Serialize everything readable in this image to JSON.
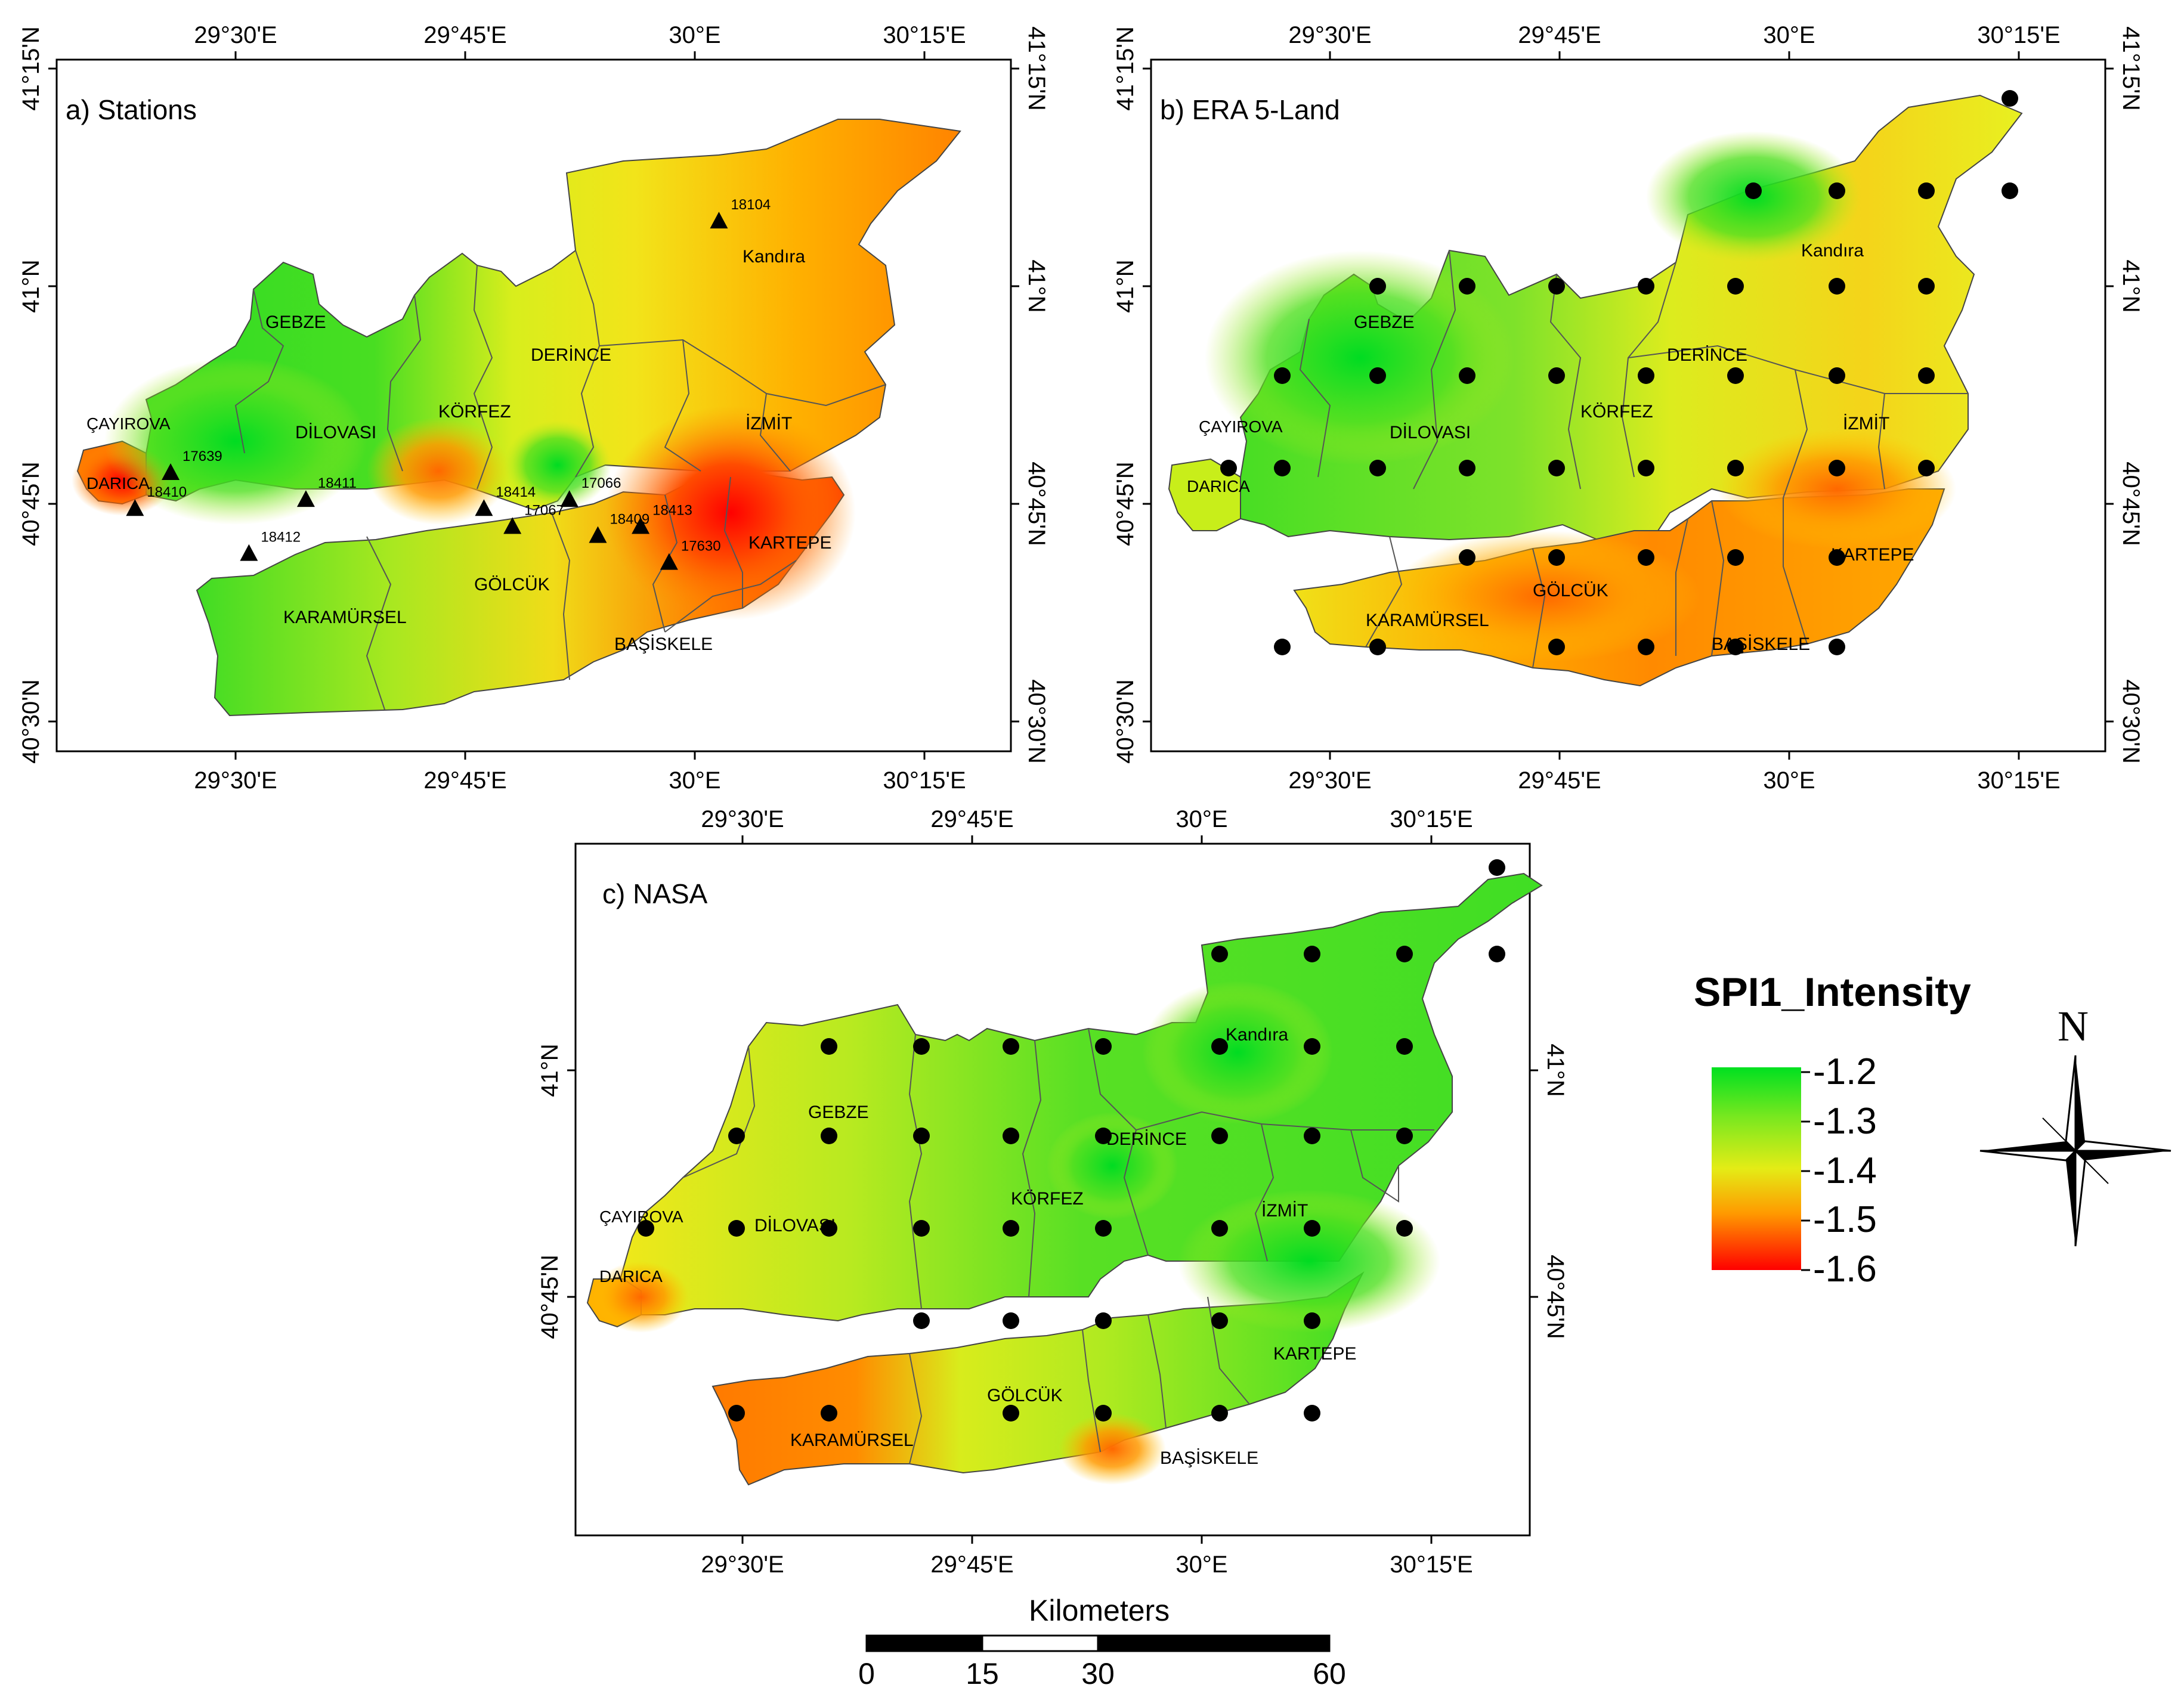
{
  "panels": [
    {
      "id": "a",
      "title": "a) Stations",
      "top_axis_ticks": [
        "29°30'E",
        "29°45'E",
        "30°E",
        "30°15'E"
      ],
      "bottom_axis_ticks": [
        "29°30'E",
        "29°45'E",
        "30°E",
        "30°15'E"
      ],
      "left_axis_ticks": [
        "41°15'N",
        "41°N",
        "40°45'N",
        "40°30'N"
      ],
      "right_axis_ticks": [
        "41°15'N",
        "41°N",
        "40°45'N",
        "40°30'N"
      ],
      "districts": [
        "Kandıra",
        "GEBZE",
        "DERİNCE",
        "ÇAYIROVA",
        "DİLOVASI",
        "KÖRFEZ",
        "İZMİT",
        "DARICA",
        "KARTEPE",
        "GÖLCÜK",
        "KARAMÜRSEL",
        "BAŞİSKELE"
      ],
      "station_marker": "triangle",
      "stations": [
        {
          "id": "18104",
          "lon": 30.14,
          "lat": 41.08
        },
        {
          "id": "17639",
          "lon": 29.37,
          "lat": 40.8
        },
        {
          "id": "18411",
          "lon": 29.56,
          "lat": 40.77
        },
        {
          "id": "18414",
          "lon": 29.81,
          "lat": 40.76
        },
        {
          "id": "17066",
          "lon": 29.93,
          "lat": 40.77
        },
        {
          "id": "17067",
          "lon": 29.85,
          "lat": 40.74
        },
        {
          "id": "18410",
          "lon": 29.32,
          "lat": 40.76
        },
        {
          "id": "18412",
          "lon": 29.48,
          "lat": 40.71
        },
        {
          "id": "18409",
          "lon": 29.97,
          "lat": 40.73
        },
        {
          "id": "18413",
          "lon": 30.03,
          "lat": 40.74
        },
        {
          "id": "17630",
          "lon": 30.07,
          "lat": 40.7
        }
      ]
    },
    {
      "id": "b",
      "title": "b) ERA 5-Land",
      "top_axis_ticks": [
        "29°30'E",
        "29°45'E",
        "30°E",
        "30°15'E"
      ],
      "bottom_axis_ticks": [
        "29°30'E",
        "29°45'E",
        "30°E",
        "30°15'E"
      ],
      "left_axis_ticks": [
        "41°15'N",
        "41°N",
        "40°45'N",
        "40°30'N"
      ],
      "right_axis_ticks": [
        "41°15'N",
        "41°N",
        "40°45'N",
        "40°30'N"
      ],
      "districts": [
        "Kandıra",
        "GEBZE",
        "DERİNCE",
        "ÇAYIROVA",
        "DİLOVASI",
        "KÖRFEZ",
        "İZMİT",
        "DARICA",
        "KARTEPE",
        "GÖLCÜK",
        "KARAMÜRSEL",
        "BAŞİSKELE"
      ],
      "grid_marker": "circle"
    },
    {
      "id": "c",
      "title": "c) NASA",
      "top_axis_ticks": [
        "29°30'E",
        "29°45'E",
        "30°E",
        "30°15'E"
      ],
      "bottom_axis_ticks": [
        "29°30'E",
        "29°45'E",
        "30°E",
        "30°15'E"
      ],
      "left_axis_ticks": [
        "41°N",
        "40°45'N"
      ],
      "right_axis_ticks": [
        "41°N",
        "40°45'N"
      ],
      "districts": [
        "Kandıra",
        "GEBZE",
        "DERİNCE",
        "ÇAYIROVA",
        "DİLOVASI",
        "KÖRFEZ",
        "İZMİT",
        "DARICA",
        "KARTEPE",
        "GÖLCÜK",
        "KARAMÜRSEL",
        "BAŞİSKELE"
      ],
      "grid_marker": "circle"
    }
  ],
  "legend": {
    "title": "SPI1_Intensity",
    "values": [
      "-1.2",
      "-1.3",
      "-1.4",
      "-1.5",
      "-1.6"
    ],
    "colors": [
      "#00e020",
      "#c8f020",
      "#ffd400",
      "#ff8a00",
      "#ff0000"
    ]
  },
  "north_arrow": {
    "label": "N",
    "icon": "compass-rose-icon"
  },
  "scale_bar": {
    "title": "Kilometers",
    "ticks": [
      "0",
      "15",
      "30",
      "60"
    ],
    "tick_values_km": [
      0,
      15,
      30,
      60
    ]
  },
  "colors": {
    "green": "#1bd82a",
    "yellow": "#f2e81a",
    "orange": "#ff8a00",
    "red": "#ff1a00",
    "sea": "#ffffff"
  }
}
